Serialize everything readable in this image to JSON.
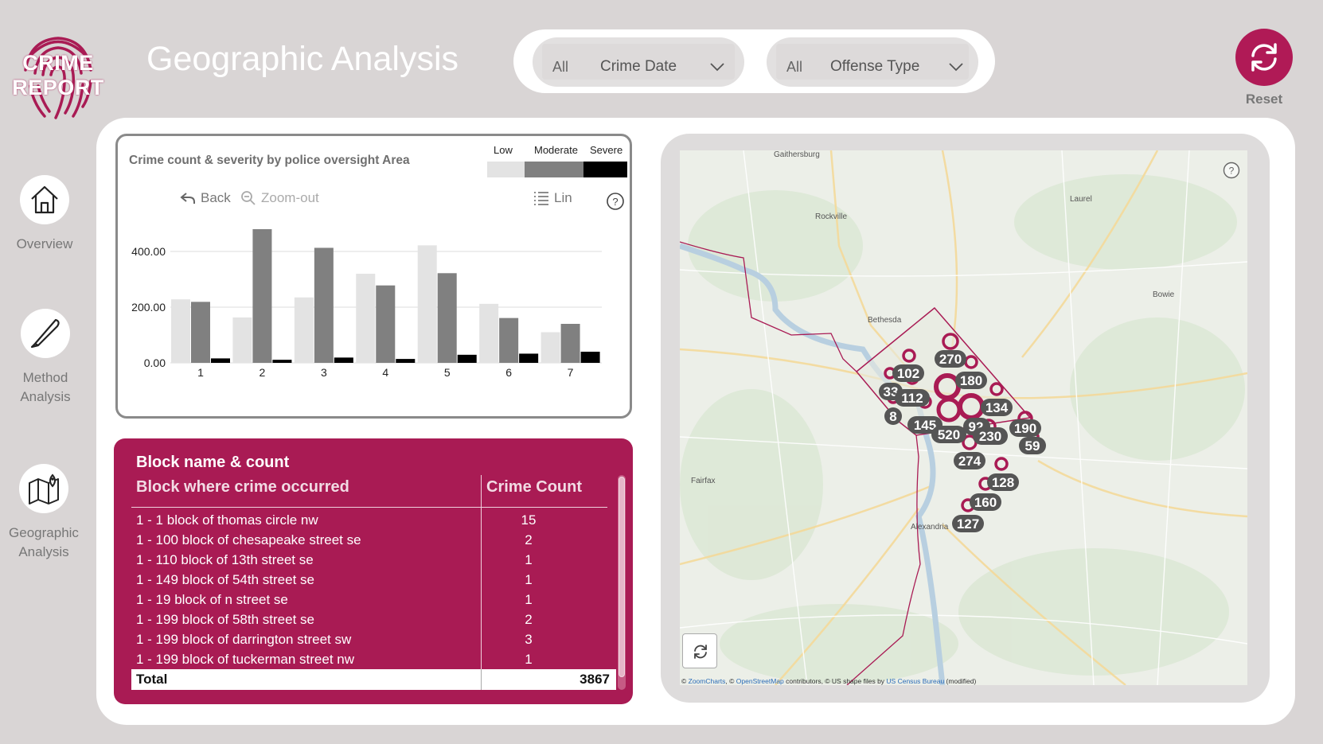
{
  "app": {
    "logo_line1": "CRIME",
    "logo_line2": "REPORT",
    "title": "Geographic Analysis"
  },
  "filters": [
    {
      "value": "All",
      "label": "Crime Date",
      "icon": "chevron-down-icon"
    },
    {
      "value": "All",
      "label": "Offense Type",
      "icon": "chevron-down-icon"
    }
  ],
  "reset": {
    "label": "Reset",
    "icon": "refresh-icon",
    "color": "#b01a56"
  },
  "nav": [
    {
      "label": "Overview",
      "icon": "home-icon"
    },
    {
      "label": "Method Analysis",
      "icon": "knife-icon"
    },
    {
      "label": "Geographic Analysis",
      "icon": "map-icon"
    }
  ],
  "chart_card": {
    "controls": {
      "back": "Back",
      "zoom_out": "Zoom-out",
      "lin": "Lin"
    }
  },
  "chart_data": {
    "type": "bar",
    "title": "Crime count & severity by police oversight Area",
    "categories": [
      "1",
      "2",
      "3",
      "4",
      "5",
      "6",
      "7"
    ],
    "series": [
      {
        "name": "Low",
        "color": "#e3e3e3",
        "values": [
          228,
          163,
          235,
          320,
          422,
          212,
          110
        ]
      },
      {
        "name": "Moderate",
        "color": "#808080",
        "values": [
          219,
          480,
          413,
          278,
          322,
          161,
          140
        ]
      },
      {
        "name": "Severe",
        "color": "#000000",
        "values": [
          16,
          11,
          19,
          14,
          29,
          33,
          40
        ]
      }
    ],
    "yticks": [
      "0.00",
      "200.00",
      "400.00"
    ],
    "ylim": [
      0,
      500
    ],
    "legend_position": "top-right",
    "grid": true
  },
  "table": {
    "title": "Block name & count",
    "col1": "Block where crime occurred",
    "col2": "Crime Count",
    "rows": [
      {
        "block": "1 - 1 block of thomas circle nw",
        "count": "15"
      },
      {
        "block": "1 - 100 block of chesapeake street se",
        "count": "2"
      },
      {
        "block": "1 - 110 block of 13th street se",
        "count": "1"
      },
      {
        "block": "1 - 149 block of 54th street se",
        "count": "1"
      },
      {
        "block": "1 - 19 block of n street se",
        "count": "1"
      },
      {
        "block": "1 - 199 block of 58th street se",
        "count": "2"
      },
      {
        "block": "1 - 199 block of darrington street sw",
        "count": "3"
      },
      {
        "block": "1 - 199 block of tuckerman street nw",
        "count": "1"
      }
    ],
    "total_label": "Total",
    "total_value": "3867"
  },
  "map": {
    "places": [
      "Gaithersburg",
      "Rockville",
      "Laurel",
      "Bethesda",
      "Bowie",
      "Fairfax",
      "Alexandria"
    ],
    "clusters": [
      "270",
      "102",
      "180",
      "33",
      "112",
      "134",
      "8",
      "145",
      "520",
      "92",
      "230",
      "190",
      "59",
      "274",
      "128",
      "160",
      "127"
    ],
    "attribution": {
      "prefix": "©",
      "zoomcharts": "ZoomCharts",
      "sep": ", ©",
      "osm": "OpenStreetMap",
      "mid": " contributors, © US shape files by ",
      "census": "US Census Bureau",
      "suffix": " (modified)"
    }
  }
}
